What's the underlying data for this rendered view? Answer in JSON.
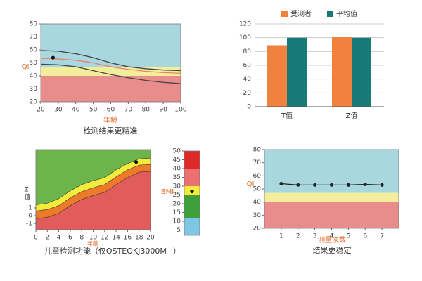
{
  "chart_data": [
    {
      "type": "line",
      "caption": "检测结果更精准",
      "xlabel": "年龄",
      "ylabel": "QI",
      "xlim": [
        20,
        100
      ],
      "xticks": [
        20,
        30,
        40,
        50,
        60,
        70,
        80,
        90,
        100
      ],
      "ylim": [
        20,
        80
      ],
      "yticks": [
        20,
        30,
        40,
        50,
        60,
        70,
        80
      ],
      "bands": [
        {
          "color": "#a9d7e0",
          "range": [
            47,
            80
          ]
        },
        {
          "color": "#f3ee9c",
          "range": [
            40,
            47
          ]
        },
        {
          "color": "#e88c8c",
          "range": [
            20,
            40
          ]
        }
      ],
      "x": [
        20,
        30,
        40,
        50,
        60,
        70,
        80,
        90,
        100
      ],
      "series": [
        {
          "color": "#444444",
          "values": [
            59.5,
            59,
            57,
            54,
            50,
            47,
            45.5,
            44.5,
            44
          ]
        },
        {
          "color": "#e8826a",
          "values": [
            53.5,
            53,
            52,
            50,
            47,
            45,
            43.5,
            42.5,
            42
          ]
        },
        {
          "color": "#444444",
          "values": [
            49,
            48.5,
            47,
            44,
            41,
            38.5,
            36.5,
            35,
            34
          ]
        }
      ],
      "points": [
        {
          "x": 27,
          "y": 54
        }
      ]
    },
    {
      "type": "bar",
      "categories": [
        "T值",
        "Z值"
      ],
      "ylim": [
        0,
        120
      ],
      "yticks": [
        0,
        20,
        40,
        60,
        80,
        100,
        120
      ],
      "grid": true,
      "series": [
        {
          "name": "受测者",
          "color": "#f0813f",
          "values": [
            89,
            101
          ]
        },
        {
          "name": "平均值",
          "color": "#17797a",
          "values": [
            100,
            100
          ]
        }
      ]
    },
    {
      "type": "area",
      "caption": "儿童检测功能（仅OSTEOKJ3000M+）",
      "xlabel": "年龄",
      "ylabel": "Z值",
      "background": "#6db44b",
      "xlim": [
        0,
        20
      ],
      "xticks": [
        0,
        2,
        4,
        6,
        8,
        10,
        12,
        14,
        16,
        18,
        20
      ],
      "ylim": [
        -1.8,
        8.5
      ],
      "yticks": [
        -1,
        0,
        1
      ],
      "x": [
        0,
        2,
        4,
        6,
        8,
        10,
        12,
        14,
        16,
        18,
        20
      ],
      "series": [
        {
          "color": "#f4ec3c",
          "values": [
            1.4,
            1.6,
            2.2,
            3.2,
            4,
            4.5,
            4.9,
            5.9,
            6.7,
            7.3,
            7.4
          ]
        },
        {
          "color": "#ec7a28",
          "values": [
            0.6,
            0.8,
            1.3,
            2.3,
            3.1,
            3.6,
            4,
            5,
            5.9,
            6.5,
            6.6
          ]
        },
        {
          "color": "#e25c5c",
          "values": [
            -0.4,
            -0.2,
            0.3,
            1.3,
            2.1,
            2.6,
            3,
            4,
            4.9,
            5.6,
            5.7
          ]
        }
      ],
      "points": [
        {
          "x": 17.5,
          "y": 6.9
        }
      ]
    },
    {
      "type": "band",
      "ylabel": "BMI",
      "ylim": [
        2,
        50
      ],
      "yticks": [
        5,
        10,
        15,
        20,
        25,
        30,
        35,
        40,
        45,
        50
      ],
      "bands": [
        {
          "color": "#dc2a2a",
          "range": [
            40,
            50
          ]
        },
        {
          "color": "#ec7070",
          "range": [
            30,
            40
          ]
        },
        {
          "color": "#f4ec3c",
          "range": [
            25,
            30
          ]
        },
        {
          "color": "#3ea03a",
          "range": [
            12,
            25
          ]
        },
        {
          "color": "#7ec6e4",
          "range": [
            2,
            12
          ]
        }
      ],
      "points": [
        {
          "y": 27
        }
      ]
    },
    {
      "type": "line",
      "caption": "结果更稳定",
      "xlabel": "测量次数",
      "ylabel": "QI",
      "markers": true,
      "xlim": [
        0,
        8
      ],
      "xticks": [
        1,
        2,
        3,
        4,
        5,
        6,
        7
      ],
      "ylim": [
        20,
        80
      ],
      "yticks": [
        20,
        30,
        40,
        50,
        60,
        70,
        80
      ],
      "bands": [
        {
          "color": "#a9d7e0",
          "range": [
            47,
            80
          ]
        },
        {
          "color": "#f3ee9c",
          "range": [
            40,
            47
          ]
        },
        {
          "color": "#e88c8c",
          "range": [
            20,
            40
          ]
        }
      ],
      "x": [
        1,
        2,
        3,
        4,
        5,
        6,
        7
      ],
      "series": [
        {
          "color": "#222222",
          "values": [
            54,
            53,
            53,
            53,
            53,
            53.5,
            53
          ]
        }
      ]
    }
  ]
}
